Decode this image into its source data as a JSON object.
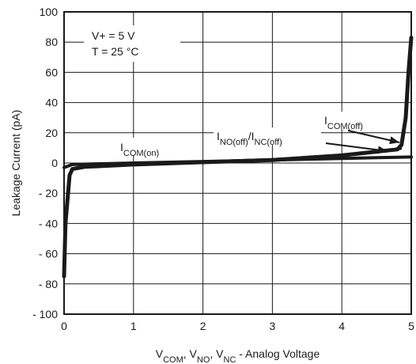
{
  "chart_data": {
    "type": "line",
    "title": "",
    "xlabel_parts": [
      {
        "t": "V",
        "sub": false
      },
      {
        "t": "COM",
        "sub": true
      },
      {
        "t": ", V",
        "sub": false
      },
      {
        "t": "NO",
        "sub": true
      },
      {
        "t": ", V",
        "sub": false
      },
      {
        "t": "NC",
        "sub": true
      },
      {
        "t": " - Analog Voltage",
        "sub": false
      }
    ],
    "ylabel": "Leakage Current (pA)",
    "xlim": [
      0,
      5
    ],
    "ylim": [
      -100,
      100
    ],
    "x_ticks": [
      0,
      1,
      2,
      3,
      4,
      5
    ],
    "y_ticks": [
      100,
      80,
      60,
      40,
      20,
      0,
      -20,
      -40,
      -60,
      -80,
      -100
    ],
    "y_tick_labels": [
      "100",
      "80",
      "60",
      "40",
      "20",
      "0",
      "- 20",
      "- 40",
      "- 60",
      "- 80",
      "- 100"
    ],
    "grid": true,
    "conditions": [
      "V+ =  5 V",
      "T = 25 °C"
    ],
    "series": [
      {
        "label_parts": [
          {
            "t": "I",
            "sub": false
          },
          {
            "t": "COM(on)",
            "sub": true
          }
        ],
        "x": [
          0,
          0.02,
          0.08,
          0.12,
          0.3,
          1,
          2,
          3,
          4,
          4.8,
          4.86,
          4.92,
          4.96,
          5
        ],
        "y": [
          -75,
          -40,
          -8,
          -4,
          -2.5,
          -1,
          0.5,
          2,
          5,
          9,
          12,
          30,
          60,
          83
        ]
      },
      {
        "label_parts": [
          {
            "t": "I",
            "sub": false
          },
          {
            "t": "COM(off)",
            "sub": true
          }
        ],
        "x": [
          0,
          0.12,
          0.5,
          1,
          2,
          3,
          4,
          4.5,
          4.85
        ],
        "y": [
          -3,
          -1,
          -0.5,
          0,
          1,
          2.5,
          5,
          7,
          9.5
        ]
      },
      {
        "label_parts": [
          {
            "t": "I",
            "sub": false
          },
          {
            "t": "NO(off)",
            "sub": true
          },
          {
            "t": "/I",
            "sub": false
          },
          {
            "t": "NC(off)",
            "sub": true
          }
        ],
        "x": [
          0,
          0.12,
          0.5,
          1,
          2,
          3,
          4,
          4.5,
          5
        ],
        "y": [
          -3,
          -1,
          -0.5,
          0,
          1,
          2,
          3,
          3.5,
          4
        ]
      }
    ]
  }
}
